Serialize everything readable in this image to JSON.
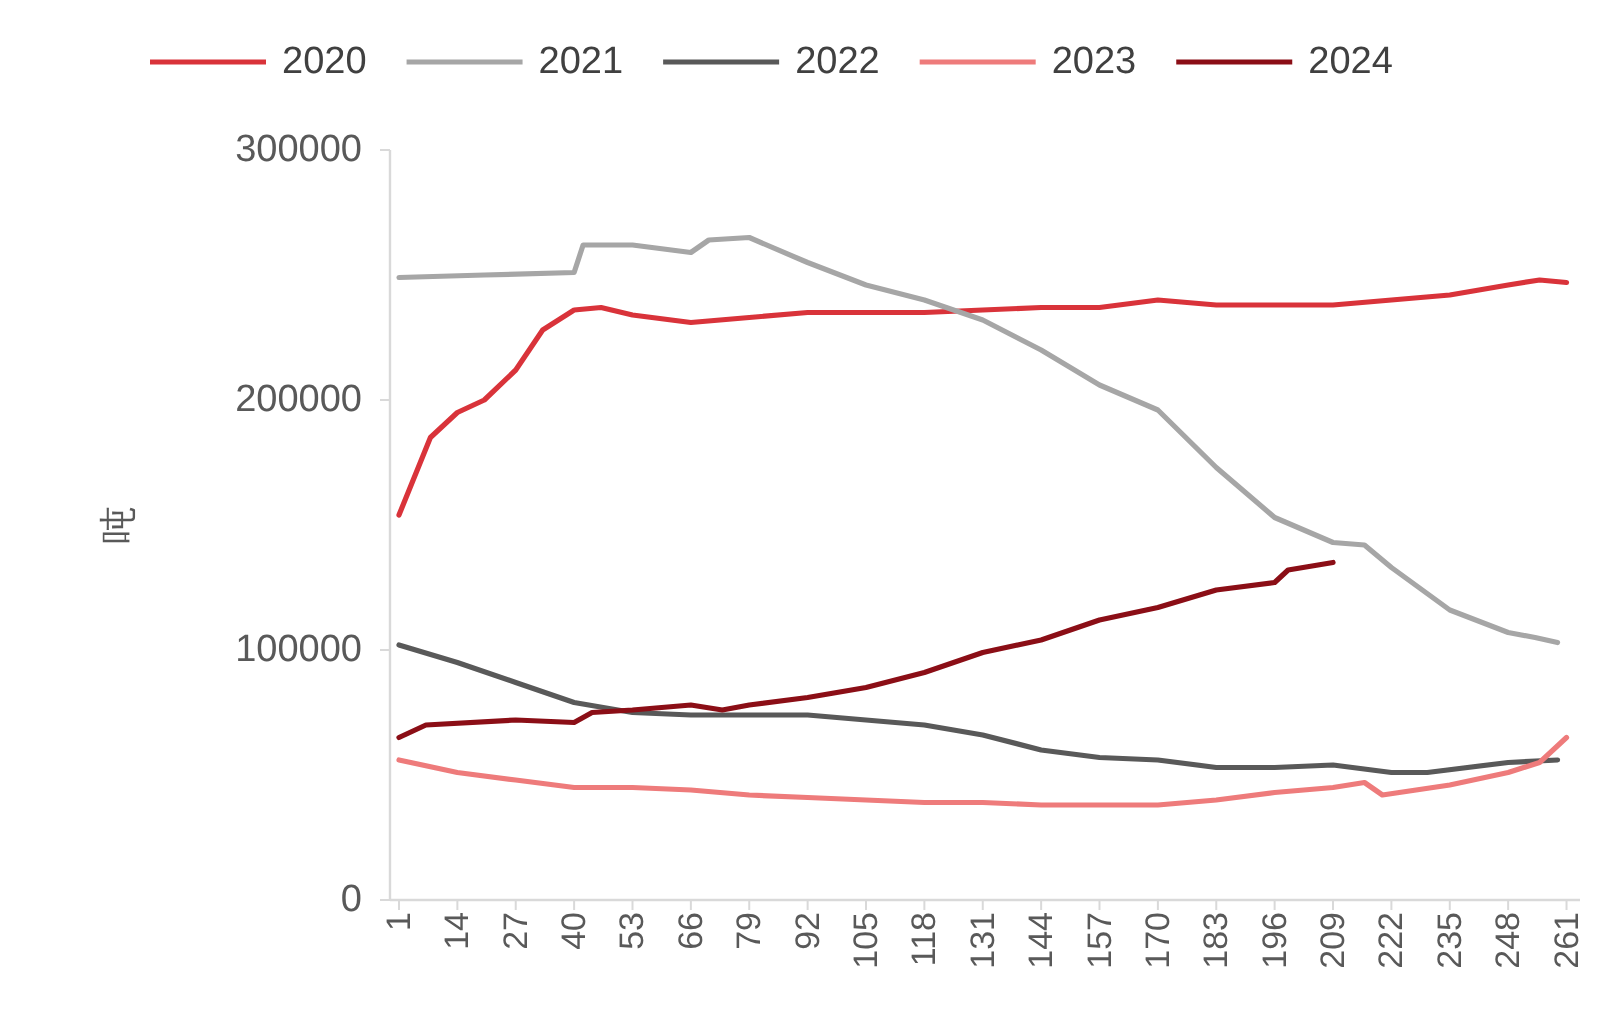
{
  "chart_data": {
    "type": "line",
    "ylabel": "吨",
    "xlim": [
      -1,
      264
    ],
    "xticks": [
      1,
      14,
      27,
      40,
      53,
      66,
      79,
      92,
      105,
      118,
      131,
      144,
      157,
      170,
      183,
      196,
      209,
      222,
      235,
      248,
      261
    ],
    "ylim": [
      0,
      300000
    ],
    "yticks": [
      0,
      100000,
      200000,
      300000
    ],
    "grid": false,
    "legend": "top",
    "marker": "none",
    "line_style": "solid",
    "series": [
      {
        "name": "2020",
        "color": "#d9333a",
        "x": [
          1,
          8,
          14,
          20,
          27,
          33,
          40,
          46,
          53,
          66,
          79,
          92,
          105,
          118,
          131,
          144,
          157,
          170,
          183,
          196,
          209,
          222,
          235,
          248,
          255,
          261
        ],
        "values": [
          154000,
          185000,
          195000,
          200000,
          212000,
          228000,
          236000,
          237000,
          234000,
          231000,
          233000,
          235000,
          235000,
          235000,
          236000,
          237000,
          237000,
          240000,
          238000,
          238000,
          238000,
          240000,
          242000,
          246000,
          248000,
          247000
        ]
      },
      {
        "name": "2021",
        "color": "#a6a6a6",
        "x": [
          1,
          20,
          40,
          42,
          53,
          66,
          70,
          79,
          92,
          105,
          118,
          131,
          144,
          157,
          170,
          183,
          196,
          209,
          216,
          222,
          235,
          248,
          254,
          259
        ],
        "values": [
          249000,
          250000,
          251000,
          262000,
          262000,
          259000,
          264000,
          265000,
          255000,
          246000,
          240000,
          232000,
          220000,
          206000,
          196000,
          173000,
          153000,
          143000,
          142000,
          133000,
          116000,
          107000,
          105000,
          103000
        ]
      },
      {
        "name": "2022",
        "color": "#595959",
        "x": [
          1,
          14,
          27,
          40,
          53,
          66,
          79,
          92,
          105,
          118,
          131,
          144,
          157,
          170,
          183,
          196,
          209,
          222,
          230,
          248,
          259
        ],
        "values": [
          102000,
          95000,
          87000,
          79000,
          75000,
          74000,
          74000,
          74000,
          72000,
          70000,
          66000,
          60000,
          57000,
          56000,
          53000,
          53000,
          54000,
          51000,
          51000,
          55000,
          56000
        ]
      },
      {
        "name": "2023",
        "color": "#ee7b7b",
        "x": [
          1,
          14,
          27,
          40,
          53,
          66,
          79,
          92,
          105,
          118,
          131,
          144,
          157,
          170,
          183,
          196,
          209,
          216,
          220,
          235,
          248,
          255,
          261
        ],
        "values": [
          56000,
          51000,
          48000,
          45000,
          45000,
          44000,
          42000,
          41000,
          40000,
          39000,
          39000,
          38000,
          38000,
          38000,
          40000,
          43000,
          45000,
          47000,
          42000,
          46000,
          51000,
          55000,
          65000
        ]
      },
      {
        "name": "2024",
        "color": "#8b0e16",
        "x": [
          1,
          7,
          27,
          40,
          44,
          53,
          66,
          73,
          79,
          92,
          105,
          118,
          131,
          144,
          157,
          170,
          183,
          196,
          199,
          209
        ],
        "values": [
          65000,
          70000,
          72000,
          71000,
          75000,
          76000,
          78000,
          76000,
          78000,
          81000,
          85000,
          91000,
          99000,
          104000,
          112000,
          117000,
          124000,
          127000,
          132000,
          135000
        ]
      }
    ]
  }
}
